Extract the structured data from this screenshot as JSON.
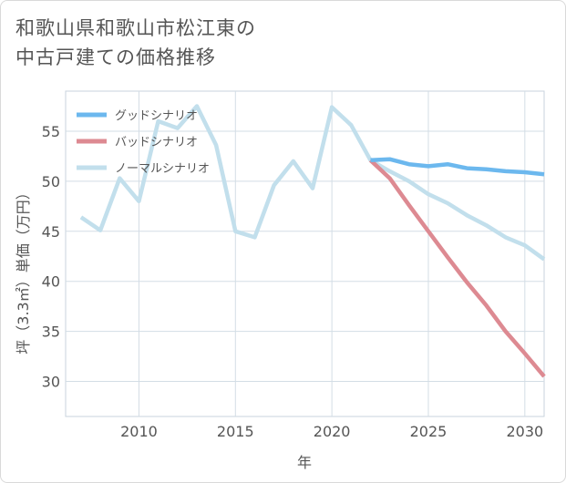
{
  "title_lines": [
    "和歌山県和歌山市松江東の",
    "中古戸建ての価格推移"
  ],
  "chart_data": {
    "type": "line",
    "title": "和歌山県和歌山市松江東の中古戸建ての価格推移",
    "xlabel": "年",
    "ylabel": "坪（3.3㎡）単価（万円）",
    "xlim": [
      2006.2,
      2031
    ],
    "ylim": [
      26.5,
      59
    ],
    "xticks": [
      2010,
      2015,
      2020,
      2025,
      2030
    ],
    "yticks": [
      30,
      35,
      40,
      45,
      50,
      55
    ],
    "grid": true,
    "legend_position": "top-left",
    "series": [
      {
        "name": "グッドシナリオ",
        "color": "#6cb8ee",
        "x": [
          2022,
          2023,
          2024,
          2025,
          2026,
          2027,
          2028,
          2029,
          2030,
          2031
        ],
        "values": [
          52.1,
          52.2,
          51.7,
          51.5,
          51.7,
          51.3,
          51.2,
          51.0,
          50.9,
          50.7
        ]
      },
      {
        "name": "バッドシナリオ",
        "color": "#dd8a92",
        "x": [
          2022,
          2023,
          2024,
          2025,
          2026,
          2027,
          2028,
          2029,
          2030,
          2031
        ],
        "values": [
          52.1,
          50.3,
          47.6,
          45.0,
          42.4,
          39.9,
          37.6,
          35.0,
          32.8,
          30.5
        ]
      },
      {
        "name": "ノーマルシナリオ",
        "color": "#c2dfec",
        "x": [
          2007,
          2008,
          2009,
          2010,
          2011,
          2012,
          2013,
          2014,
          2015,
          2016,
          2017,
          2018,
          2019,
          2020,
          2021,
          2022,
          2023,
          2024,
          2025,
          2026,
          2027,
          2028,
          2029,
          2030,
          2031
        ],
        "values": [
          46.4,
          45.1,
          50.3,
          48.0,
          56.0,
          55.3,
          57.5,
          53.6,
          45.0,
          44.4,
          49.6,
          52.0,
          49.3,
          57.4,
          55.6,
          52.1,
          51.0,
          50.0,
          48.7,
          47.8,
          46.6,
          45.6,
          44.4,
          43.6,
          42.2
        ]
      }
    ]
  }
}
